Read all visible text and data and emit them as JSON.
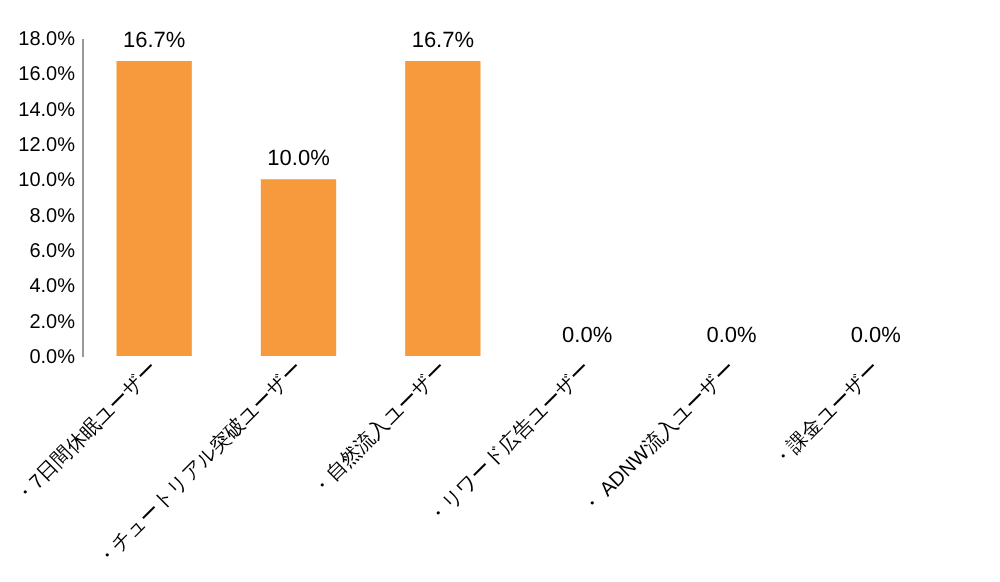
{
  "chart_data": {
    "type": "bar",
    "categories": [
      "・7日間休眠ユーザー",
      "・チュートリアル突破ユーザー",
      "・自然流入ユーザー",
      "・リワード広告ユーザー",
      "・ ADNW流入ユーザー",
      "・課金ユーザー"
    ],
    "values": [
      16.7,
      10.0,
      16.7,
      0,
      0,
      0
    ],
    "value_labels": [
      "16.7%",
      "10.0%",
      "16.7%",
      "0.0%",
      "0.0%",
      "0.0%"
    ],
    "color": "#f79a3e",
    "ylim": [
      0,
      18
    ],
    "yticks": [
      {
        "value": 0,
        "label": "0.0%"
      },
      {
        "value": 2,
        "label": "2.0%"
      },
      {
        "value": 4,
        "label": "4.0%"
      },
      {
        "value": 6,
        "label": "6.0%"
      },
      {
        "value": 8,
        "label": "8.0%"
      },
      {
        "value": 10,
        "label": "10.0%"
      },
      {
        "value": 12,
        "label": "12.0%"
      },
      {
        "value": 14,
        "label": "14.0%"
      },
      {
        "value": 16,
        "label": "16.0%"
      },
      {
        "value": 18,
        "label": "18.0%"
      }
    ],
    "grid": false
  }
}
